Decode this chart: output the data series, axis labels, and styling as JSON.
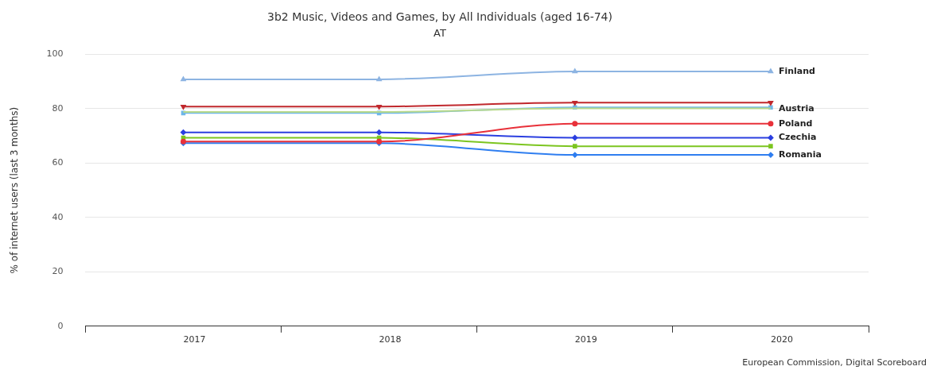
{
  "chart_data": {
    "type": "line",
    "title": "3b2 Music, Videos and Games, by All Individuals (aged 16-74)",
    "subtitle": "AT",
    "ylabel": "% of internet users (last 3 months)",
    "categories": [
      "2017",
      "2018",
      "2019",
      "2020"
    ],
    "ylim": [
      0,
      100
    ],
    "yticks": [
      0,
      20,
      40,
      60,
      80,
      100
    ],
    "grid": "y",
    "legend": false,
    "annotations": [
      "European Commission, Digital Scoreboard"
    ],
    "series": [
      {
        "name": "Finland",
        "color": "#8db4e2",
        "marker": "triangle",
        "values": [
          90.8,
          90.8,
          93.7,
          93.7
        ]
      },
      {
        "name": "Austria",
        "color": "#c0282d",
        "marker": "triangle-down",
        "values": [
          80.8,
          80.8,
          82.2,
          82.2
        ]
      },
      {
        "color": "#b8d98b",
        "marker": "none",
        "values": [
          78.8,
          78.8,
          80.1,
          80.1
        ]
      },
      {
        "color": "#6fb7e8",
        "marker": "square",
        "values": [
          78.4,
          78.4,
          80.5,
          80.5
        ]
      },
      {
        "name": "Poland",
        "color": "#e8313a",
        "marker": "circle",
        "values": [
          67.9,
          67.9,
          74.5,
          74.5
        ]
      },
      {
        "name": "Czechia",
        "color": "#2b3fe0",
        "marker": "diamond",
        "values": [
          71.3,
          71.3,
          69.3,
          69.3
        ]
      },
      {
        "color": "#7cc520",
        "marker": "square",
        "values": [
          69.3,
          69.3,
          66.2,
          66.2
        ]
      },
      {
        "name": "Romania",
        "color": "#2f7ef0",
        "marker": "diamond",
        "values": [
          67.3,
          67.3,
          63,
          63
        ]
      }
    ]
  }
}
